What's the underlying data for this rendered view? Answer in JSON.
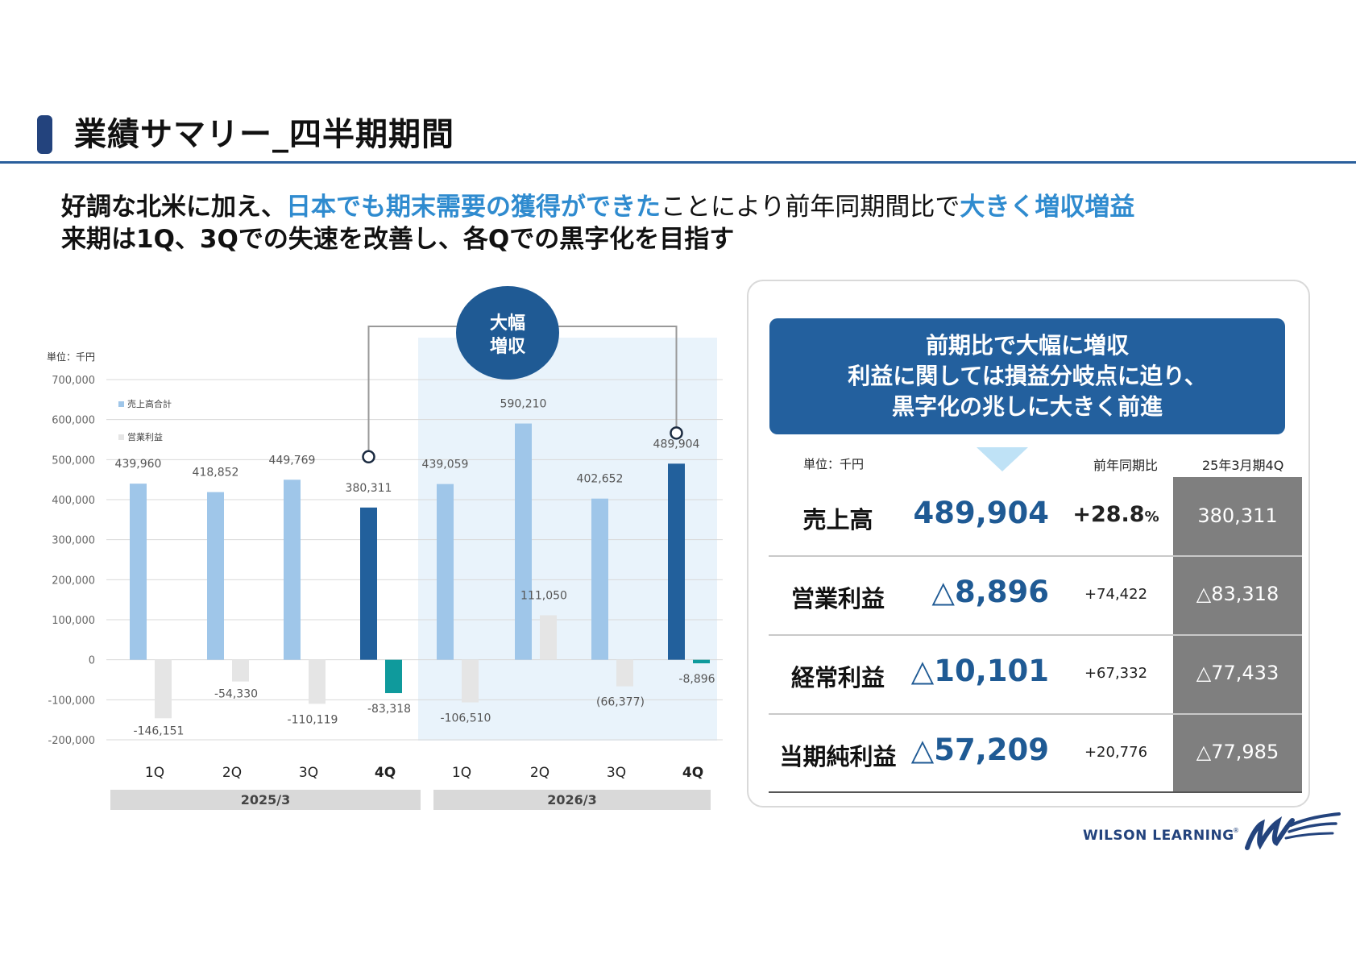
{
  "header": {
    "title": "業績サマリー_四半期期間"
  },
  "headline": {
    "line1": [
      {
        "text": "好調な北米に加え、",
        "style": "bold"
      },
      {
        "text": "日本でも期末需要の獲得ができた",
        "style": "blue"
      },
      {
        "text": "ことにより前年同期間比で",
        "style": "normal"
      },
      {
        "text": "大きく増収増益",
        "style": "blue"
      }
    ],
    "line2": "来期は1Q、3Qでの失速を改善し、各Qでの黒字化を目指す"
  },
  "chart": {
    "unit_label": "単位：千円",
    "callout_line1": "大幅",
    "callout_line2": "増収",
    "colors": {
      "sales": "#9fc6e9",
      "sales_highlight": "#22609c",
      "op": "#e5e5e5",
      "op_highlight": "#0f9a9c",
      "highlight_bg": "#e9f3fb",
      "period_bg": "#d9d9d9",
      "grid": "#d9d9d9",
      "callout": "#1f5a94"
    }
  },
  "chart_data": {
    "type": "bar",
    "categories": [
      "1Q",
      "2Q",
      "3Q",
      "4Q",
      "1Q",
      "2Q",
      "3Q",
      "4Q"
    ],
    "bold_categories": [
      false,
      false,
      false,
      true,
      false,
      false,
      false,
      true
    ],
    "groups": [
      {
        "label": "2025/3",
        "from": 0,
        "to": 3
      },
      {
        "label": "2026/3",
        "from": 4,
        "to": 7
      }
    ],
    "series": [
      {
        "name": "売上高合計",
        "values": [
          439960,
          418852,
          449769,
          380311,
          439059,
          590210,
          402652,
          489904
        ],
        "labels": [
          "439,960",
          "418,852",
          "449,769",
          "380,311",
          "439,059",
          "590,210",
          "402,652",
          "489,904"
        ]
      },
      {
        "name": "営業利益",
        "values": [
          -146151,
          -54330,
          -110119,
          -83318,
          -106510,
          111050,
          -66377,
          -8896
        ],
        "labels": [
          "-146,151",
          "-54,330",
          "-110,119",
          "-83,318",
          "-106,510",
          "111,050",
          "(66,377)",
          "-8,896"
        ]
      }
    ],
    "highlight_indices": [
      3,
      7
    ],
    "shaded_range": [
      4,
      7
    ],
    "y_ticks": [
      "700,000",
      "600,000",
      "500,000",
      "400,000",
      "300,000",
      "200,000",
      "100,000",
      "0",
      "-100,000",
      "-200,000"
    ],
    "ylim": [
      -200000,
      700000
    ],
    "grid": true,
    "legend": "top-left"
  },
  "summary": {
    "callout_lines": [
      "前期比で大幅に増収",
      "利益に関しては損益分岐点に迫り、",
      "黒字化の兆しに大きく前進"
    ],
    "unit_label": "単位：千円",
    "yoy_header": "前年同期比",
    "prev_header": "25年3月期4Q",
    "rows": [
      {
        "label": "売上高",
        "value": "489,904",
        "yoy": "+28.8",
        "yoy_suffix": "%",
        "prev": "380,311"
      },
      {
        "label": "営業利益",
        "value": "△8,896",
        "yoy": "+74,422",
        "yoy_suffix": "",
        "prev": "△83,318"
      },
      {
        "label": "経常利益",
        "value": "△10,101",
        "yoy": "+67,332",
        "yoy_suffix": "",
        "prev": "△77,433"
      },
      {
        "label": "当期純利益",
        "value": "△57,209",
        "yoy": "+20,776",
        "yoy_suffix": "",
        "prev": "△77,985"
      }
    ]
  },
  "logo": {
    "text": "WILSON LEARNING",
    "registered": "®"
  }
}
